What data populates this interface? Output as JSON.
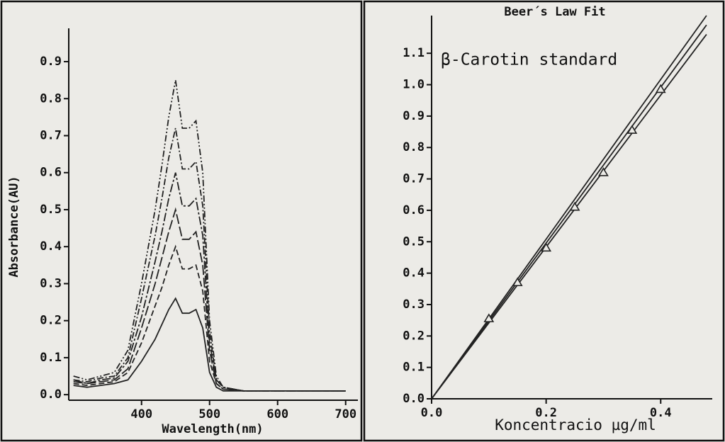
{
  "chart_data": [
    {
      "type": "line",
      "xlabel": "Wavelength(nm)",
      "ylabel": "Absorbance(AU)",
      "xlim": [
        293,
        718
      ],
      "ylim": [
        -0.015,
        0.99
      ],
      "xticks": [
        400,
        500,
        600,
        700
      ],
      "yticks": [
        {
          "value": 0,
          "label": "0.0"
        },
        0.1,
        0.2,
        0.3,
        0.4,
        0.5,
        0.6,
        0.7,
        0.8,
        0.9
      ],
      "x": [
        300,
        320,
        340,
        360,
        380,
        400,
        420,
        430,
        440,
        450,
        460,
        470,
        480,
        490,
        500,
        510,
        520,
        550,
        600,
        650,
        700
      ],
      "series": [
        {
          "color": "#222",
          "dash": "9 3 2 3 2 3",
          "values": [
            0.05,
            0.04,
            0.05,
            0.06,
            0.12,
            0.3,
            0.5,
            0.62,
            0.75,
            0.85,
            0.72,
            0.72,
            0.74,
            0.6,
            0.2,
            0.05,
            0.02,
            0.01,
            0.01,
            0.01,
            0.01
          ]
        },
        {
          "color": "#222",
          "dash": "9 3 2 3",
          "values": [
            0.04,
            0.035,
            0.045,
            0.05,
            0.1,
            0.26,
            0.43,
            0.53,
            0.64,
            0.72,
            0.61,
            0.61,
            0.63,
            0.51,
            0.17,
            0.04,
            0.02,
            0.01,
            0.01,
            0.01,
            0.01
          ]
        },
        {
          "color": "#222",
          "dash": "12 3 3 3",
          "values": [
            0.04,
            0.03,
            0.04,
            0.045,
            0.09,
            0.21,
            0.36,
            0.44,
            0.53,
            0.6,
            0.51,
            0.51,
            0.53,
            0.43,
            0.14,
            0.04,
            0.02,
            0.01,
            0.01,
            0.01,
            0.01
          ]
        },
        {
          "color": "#222",
          "dash": "14 4",
          "values": [
            0.035,
            0.03,
            0.035,
            0.04,
            0.07,
            0.18,
            0.3,
            0.37,
            0.44,
            0.5,
            0.42,
            0.42,
            0.44,
            0.35,
            0.12,
            0.03,
            0.015,
            0.01,
            0.01,
            0.01,
            0.01
          ]
        },
        {
          "color": "#222",
          "dash": "8 4",
          "values": [
            0.03,
            0.025,
            0.03,
            0.035,
            0.06,
            0.14,
            0.24,
            0.29,
            0.35,
            0.4,
            0.34,
            0.34,
            0.35,
            0.28,
            0.09,
            0.03,
            0.015,
            0.01,
            0.01,
            0.01,
            0.01
          ]
        },
        {
          "color": "#222",
          "dash": "none",
          "values": [
            0.025,
            0.02,
            0.025,
            0.03,
            0.04,
            0.09,
            0.15,
            0.19,
            0.23,
            0.26,
            0.22,
            0.22,
            0.23,
            0.18,
            0.06,
            0.02,
            0.01,
            0.01,
            0.01,
            0.01,
            0.01
          ]
        }
      ]
    },
    {
      "type": "scatter",
      "title": "Beer´s Law Fit",
      "annotation": "β-Carotin standard",
      "xlabel": "Koncentracio µg/ml",
      "xlim": [
        0,
        0.49
      ],
      "ylim": [
        0,
        1.22
      ],
      "xticks": [
        {
          "value": 0,
          "label": "0.0"
        },
        0.2,
        0.4
      ],
      "yticks": [
        {
          "value": 0,
          "label": "0.0"
        },
        0.1,
        0.2,
        0.3,
        0.4,
        0.5,
        0.6,
        0.7,
        0.8,
        0.9,
        {
          "value": 1,
          "label": "1.0"
        },
        1.1
      ],
      "series": [
        {
          "type": "line",
          "color": "#222",
          "x": [
            0,
            0.48
          ],
          "values": [
            0,
            1.19
          ]
        },
        {
          "type": "line",
          "color": "#222",
          "x": [
            0,
            0.48
          ],
          "values": [
            0,
            1.22
          ]
        },
        {
          "type": "line",
          "color": "#222",
          "x": [
            0,
            0.48
          ],
          "values": [
            0,
            1.16
          ]
        },
        {
          "type": "scatter",
          "marker": "triangle",
          "color": "#222",
          "x": [
            0.1,
            0.15,
            0.2,
            0.25,
            0.3,
            0.35,
            0.4
          ],
          "values": [
            0.255,
            0.37,
            0.48,
            0.61,
            0.72,
            0.855,
            0.985
          ]
        }
      ]
    }
  ]
}
